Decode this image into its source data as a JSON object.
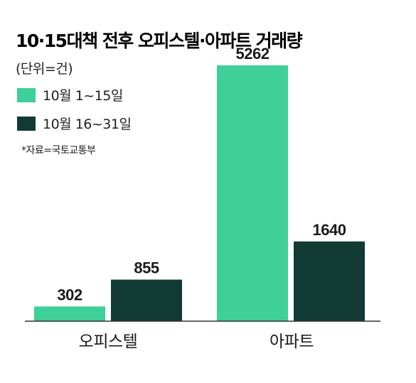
{
  "chart_data": {
    "type": "bar",
    "title": "10·15대책 전후 오피스텔·아파트 거래량",
    "subtitle": "(단위=건)",
    "source": "*자료=국토교통부",
    "categories": [
      "오피스텔",
      "아파트"
    ],
    "series": [
      {
        "name": "10월 1~15일",
        "values": [
          302,
          5262
        ],
        "color": "#3fcf98"
      },
      {
        "name": "10월 16~31일",
        "values": [
          855,
          1640
        ],
        "color": "#103a33"
      }
    ],
    "legend_position": "top-left",
    "grid": false,
    "xlabel": "",
    "ylabel": "",
    "ylim": [
      0,
      5700
    ]
  }
}
